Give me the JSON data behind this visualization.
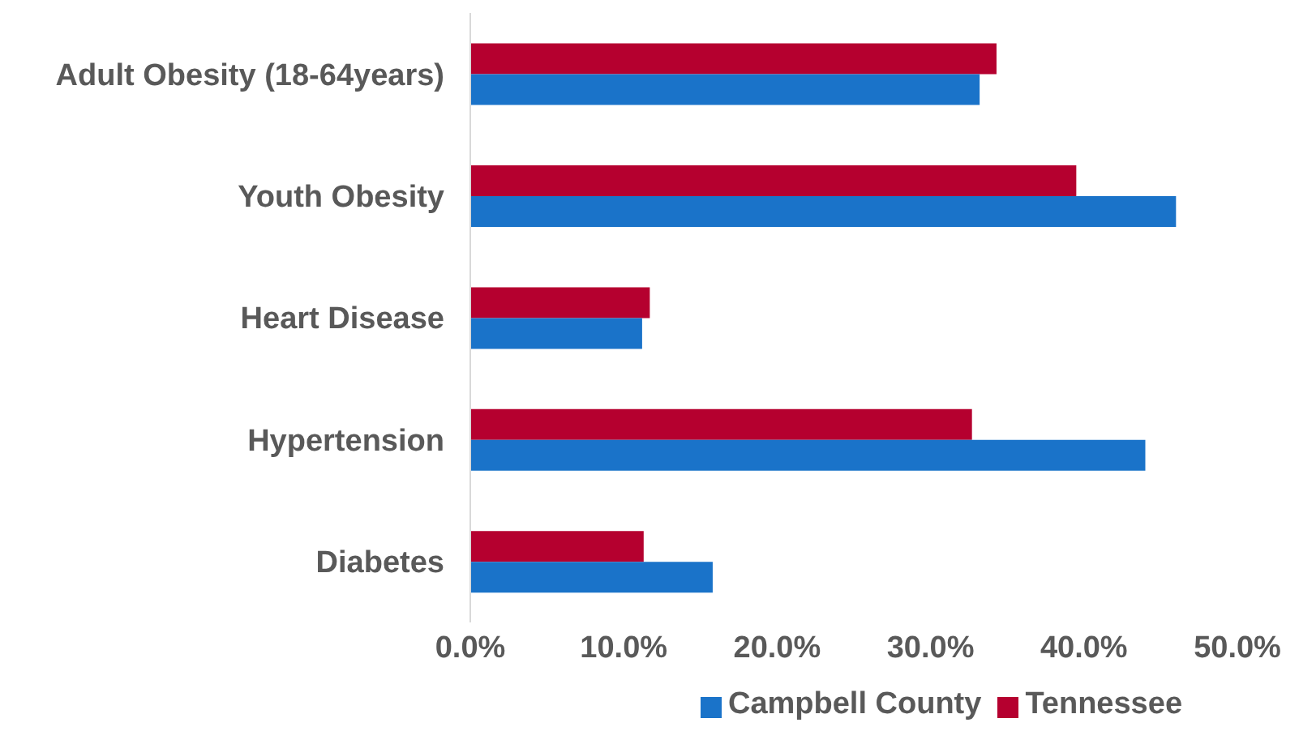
{
  "chart_data": {
    "type": "bar",
    "orientation": "horizontal",
    "categories": [
      "Adult Obesity (18-64years)",
      "Youth Obesity",
      "Heart Disease",
      "Hypertension",
      "Diabetes"
    ],
    "series": [
      {
        "name": "Tennessee",
        "color": "#b5002f",
        "values": [
          34.3,
          39.5,
          11.7,
          32.7,
          11.3
        ]
      },
      {
        "name": "Campbell County",
        "color": "#1a73c9",
        "values": [
          33.2,
          46.0,
          11.2,
          44.0,
          15.8
        ]
      }
    ],
    "xlim": [
      0,
      50
    ],
    "xticks": [
      {
        "value": 0,
        "label": "0.0%"
      },
      {
        "value": 10,
        "label": "10.0%"
      },
      {
        "value": 20,
        "label": "20.0%"
      },
      {
        "value": 30,
        "label": "30.0%"
      },
      {
        "value": 40,
        "label": "40.0%"
      },
      {
        "value": 50,
        "label": "50.0%"
      }
    ],
    "grid": false,
    "legend": "bottom"
  }
}
